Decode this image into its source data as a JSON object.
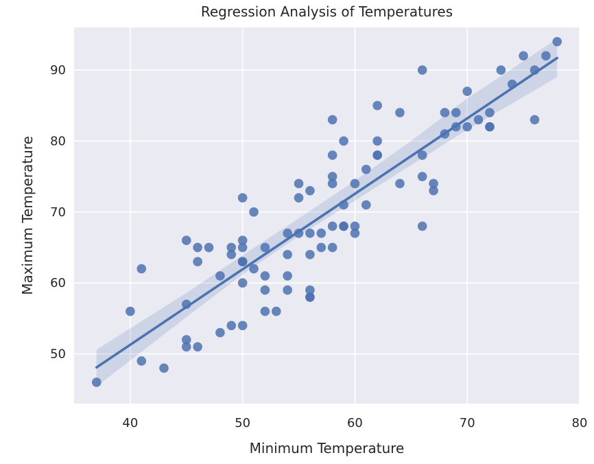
{
  "chart_data": {
    "type": "scatter",
    "title": "Regression Analysis of Temperatures",
    "xlabel": "Minimum Temperature",
    "ylabel": "Maximum Temperature",
    "xlim": [
      35,
      80
    ],
    "ylim": [
      43,
      96
    ],
    "xticks": [
      40,
      50,
      60,
      70,
      80
    ],
    "yticks": [
      50,
      60,
      70,
      80,
      90
    ],
    "xtick_labels": [
      "40",
      "50",
      "60",
      "70",
      "80"
    ],
    "ytick_labels": [
      "50",
      "60",
      "70",
      "80",
      "90"
    ],
    "grid": true,
    "colors": {
      "background": "#eaeaf2",
      "grid": "#ffffff",
      "points": "#4c72b0",
      "line": "#4c72b0",
      "band": "#4c72b0"
    },
    "regression": {
      "x": [
        37,
        78
      ],
      "y": [
        48.1,
        91.7
      ]
    },
    "confidence_band": {
      "x": [
        37,
        45,
        50,
        55,
        60,
        65,
        70,
        78
      ],
      "lower": [
        45.4,
        55.2,
        61.2,
        66.6,
        71.6,
        76.6,
        81.6,
        89.0
      ],
      "upper": [
        50.6,
        58.6,
        63.9,
        69.1,
        74.4,
        80.0,
        86.0,
        94.4
      ]
    },
    "points": [
      [
        37,
        46
      ],
      [
        40,
        56
      ],
      [
        41,
        62
      ],
      [
        41,
        49
      ],
      [
        43,
        48
      ],
      [
        45,
        66
      ],
      [
        45,
        57
      ],
      [
        45,
        52
      ],
      [
        45,
        51
      ],
      [
        46,
        65
      ],
      [
        46,
        63
      ],
      [
        46,
        51
      ],
      [
        47,
        65
      ],
      [
        48,
        61
      ],
      [
        48,
        53
      ],
      [
        49,
        65
      ],
      [
        49,
        64
      ],
      [
        49,
        54
      ],
      [
        50,
        72
      ],
      [
        50,
        66
      ],
      [
        50,
        65
      ],
      [
        50,
        63
      ],
      [
        50,
        63
      ],
      [
        50,
        60
      ],
      [
        50,
        54
      ],
      [
        51,
        70
      ],
      [
        51,
        62
      ],
      [
        52,
        65
      ],
      [
        52,
        61
      ],
      [
        52,
        59
      ],
      [
        52,
        56
      ],
      [
        53,
        56
      ],
      [
        54,
        67
      ],
      [
        54,
        64
      ],
      [
        54,
        61
      ],
      [
        54,
        59
      ],
      [
        55,
        74
      ],
      [
        55,
        72
      ],
      [
        55,
        67
      ],
      [
        56,
        73
      ],
      [
        56,
        67
      ],
      [
        56,
        64
      ],
      [
        56,
        59
      ],
      [
        56,
        58
      ],
      [
        56,
        58
      ],
      [
        57,
        67
      ],
      [
        57,
        65
      ],
      [
        58,
        83
      ],
      [
        58,
        78
      ],
      [
        58,
        75
      ],
      [
        58,
        74
      ],
      [
        58,
        68
      ],
      [
        58,
        65
      ],
      [
        59,
        80
      ],
      [
        59,
        71
      ],
      [
        59,
        68
      ],
      [
        59,
        68
      ],
      [
        60,
        74
      ],
      [
        60,
        68
      ],
      [
        60,
        67
      ],
      [
        61,
        76
      ],
      [
        61,
        71
      ],
      [
        62,
        85
      ],
      [
        62,
        80
      ],
      [
        62,
        78
      ],
      [
        62,
        78
      ],
      [
        64,
        84
      ],
      [
        64,
        74
      ],
      [
        66,
        90
      ],
      [
        66,
        78
      ],
      [
        66,
        75
      ],
      [
        66,
        68
      ],
      [
        67,
        74
      ],
      [
        67,
        73
      ],
      [
        68,
        84
      ],
      [
        68,
        81
      ],
      [
        69,
        84
      ],
      [
        69,
        82
      ],
      [
        70,
        87
      ],
      [
        70,
        82
      ],
      [
        71,
        83
      ],
      [
        72,
        84
      ],
      [
        72,
        82
      ],
      [
        72,
        82
      ],
      [
        73,
        90
      ],
      [
        74,
        88
      ],
      [
        75,
        92
      ],
      [
        76,
        90
      ],
      [
        76,
        83
      ],
      [
        77,
        92
      ],
      [
        78,
        94
      ]
    ]
  }
}
